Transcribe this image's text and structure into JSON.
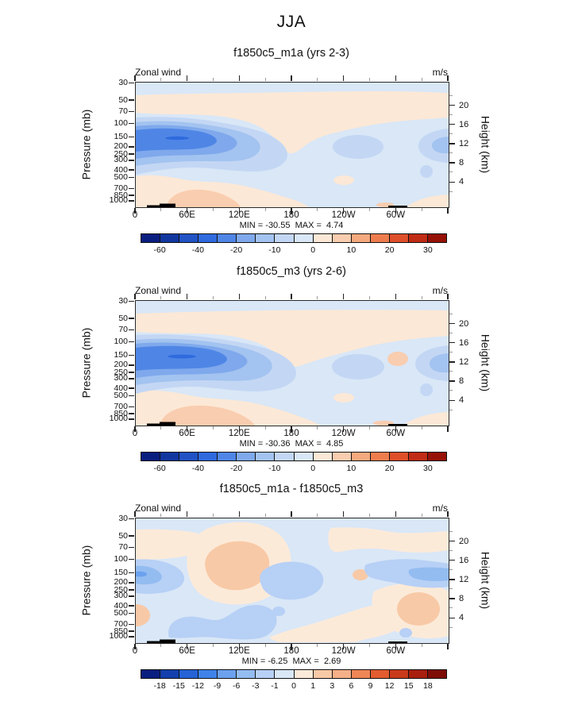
{
  "title": "JJA",
  "chart_data": [
    {
      "type": "filled-contour",
      "title": "f1850c5_m1a (yrs 2-3)",
      "field_label": "Zonal wind",
      "units": "m/s",
      "minmax_text": "MIN = -30.55  MAX =  4.74",
      "min": -30.55,
      "max": 4.74,
      "x_tick_labels": [
        "0",
        "60E",
        "120E",
        "180",
        "120W",
        "60W"
      ],
      "y_left": {
        "label": "Pressure (mb)",
        "ticks": [
          "30",
          "50",
          "70",
          "100",
          "150",
          "200",
          "250",
          "300",
          "400",
          "500",
          "700",
          "850",
          "1000"
        ]
      },
      "y_right": {
        "label": "Height (km)",
        "ticks": [
          "4",
          "8",
          "12",
          "16",
          "20"
        ]
      },
      "levels": [
        -60,
        -50,
        -40,
        -30,
        -20,
        -15,
        -10,
        -5,
        0,
        5,
        10,
        15,
        20,
        25,
        30
      ],
      "colorbar_labels": [
        "-60",
        "-40",
        "-20",
        "-10",
        "0",
        "10",
        "20",
        "30"
      ],
      "colorbar_label_level_idx": [
        0,
        2,
        4,
        6,
        8,
        10,
        12,
        14
      ],
      "colors": [
        "#0a1e80",
        "#11379f",
        "#2153c4",
        "#2f6ade",
        "#4f86e6",
        "#7fa9ec",
        "#a3c3f0",
        "#c3d7f4",
        "#d9e7f7",
        "#fce8d6",
        "#f9cdaf",
        "#f5a97e",
        "#ee7d4e",
        "#de4f2a",
        "#c02c15",
        "#961106"
      ],
      "class_color_idx": {
        "ca": 9,
        "cb": 10,
        "cc": 8,
        "cd": 7,
        "ce": 6,
        "cf": 5,
        "cg": 4,
        "ch": 3
      },
      "features": [
        "Strong easterly jet with core below -30 m/s near 150 mb over 0-90E",
        "Weak westerlies (0-5 m/s) in the 50-100 mb layer across all longitudes",
        "Westerly surface layer (0-10 m/s) below 700 mb over 0-120E",
        "Secondary easterly maxima near 200 mb around 150W-120W and at the eastern edge",
        "Black topography marks at 1000 mb near 10-40E and near 60W"
      ]
    },
    {
      "type": "filled-contour",
      "title": "f1850c5_m3 (yrs 2-6)",
      "field_label": "Zonal wind",
      "units": "m/s",
      "minmax_text": "MIN = -30.36  MAX =  4.85",
      "min": -30.36,
      "max": 4.85,
      "x_tick_labels": [
        "0",
        "60E",
        "120E",
        "180",
        "120W",
        "60W"
      ],
      "y_left": {
        "label": "Pressure (mb)",
        "ticks": [
          "30",
          "50",
          "70",
          "100",
          "150",
          "200",
          "250",
          "300",
          "400",
          "500",
          "700",
          "850",
          "1000"
        ]
      },
      "y_right": {
        "label": "Height (km)",
        "ticks": [
          "4",
          "8",
          "12",
          "16",
          "20"
        ]
      },
      "levels": [
        -60,
        -50,
        -40,
        -30,
        -20,
        -15,
        -10,
        -5,
        0,
        5,
        10,
        15,
        20,
        25,
        30
      ],
      "colorbar_labels": [
        "-60",
        "-40",
        "-20",
        "-10",
        "0",
        "10",
        "20",
        "30"
      ],
      "colorbar_label_level_idx": [
        0,
        2,
        4,
        6,
        8,
        10,
        12,
        14
      ],
      "colors": [
        "#0a1e80",
        "#11379f",
        "#2153c4",
        "#2f6ade",
        "#4f86e6",
        "#7fa9ec",
        "#a3c3f0",
        "#c3d7f4",
        "#d9e7f7",
        "#fce8d6",
        "#f9cdaf",
        "#f5a97e",
        "#ee7d4e",
        "#de4f2a",
        "#c02c15",
        "#961106"
      ],
      "class_color_idx": {
        "ca": 9,
        "cb": 10,
        "cc": 8,
        "cd": 7,
        "ce": 6,
        "cf": 5,
        "cg": 4,
        "ch": 3
      },
      "features": [
        "Strong easterly jet with core below -30 m/s near 150 mb over 0-100E, slightly broader than m1a",
        "Westerly band (0-5 m/s) in the 50-100 mb layer, wider than m1a",
        "Westerly surface layer below 700 mb over 0-120E with 5-10 m/s core",
        "Small westerly patch (5-10 m/s) near 150 mb around 60W",
        "Easterly maxima near 200 mb around 120W and at the eastern edge"
      ]
    },
    {
      "type": "filled-contour",
      "title": "f1850c5_m1a - f1850c5_m3",
      "field_label": "Zonal wind",
      "units": "m/s",
      "minmax_text": "MIN = -6.25  MAX =  2.69",
      "min": -6.25,
      "max": 2.69,
      "x_tick_labels": [
        "0",
        "60E",
        "120E",
        "180",
        "120W",
        "60W"
      ],
      "y_left": {
        "label": "Pressure (mb)",
        "ticks": [
          "30",
          "50",
          "70",
          "100",
          "150",
          "200",
          "250",
          "300",
          "400",
          "500",
          "700",
          "850",
          "1000"
        ]
      },
      "y_right": {
        "label": "Height (km)",
        "ticks": [
          "4",
          "8",
          "12",
          "16",
          "20"
        ]
      },
      "levels": [
        -18,
        -15,
        -12,
        -9,
        -6,
        -3,
        -1,
        0,
        1,
        3,
        6,
        9,
        12,
        15,
        18
      ],
      "colorbar_labels": [
        "-18",
        "-15",
        "-12",
        "-9",
        "-6",
        "-3",
        "-1",
        "0",
        "1",
        "3",
        "6",
        "9",
        "12",
        "15",
        "18"
      ],
      "colorbar_label_level_idx": [
        0,
        1,
        2,
        3,
        4,
        5,
        6,
        7,
        8,
        9,
        10,
        11,
        12,
        13,
        14
      ],
      "colors": [
        "#0a1e80",
        "#1440ad",
        "#2563d6",
        "#3f82e9",
        "#6ba1ee",
        "#93bcf1",
        "#b7d0f5",
        "#d9e7f7",
        "#fcead9",
        "#f8c9a6",
        "#f5b088",
        "#ef8656",
        "#e25c30",
        "#c93a1b",
        "#a81f0e",
        "#7e0d06"
      ],
      "class_color_idx": {
        "ca": 8,
        "cb": 9,
        "cc": 7,
        "cd": 6,
        "ce": 5,
        "cf": 4,
        "cg": 3,
        "ch": 2
      },
      "features": [
        "Negative difference down to -6.25 m/s at the western edge near 150 mb",
        "Positive difference (1-3 m/s) blob centered near 90E between 100 and 300 mb",
        "Negative band near 150-200 mb from 100W to the eastern edge",
        "Positive difference (1-3 m/s) region near 60W-30W between 300 and 700 mb",
        "Scattered weak positive/negative patches elsewhere; topography marks at 1000 mb"
      ]
    }
  ]
}
